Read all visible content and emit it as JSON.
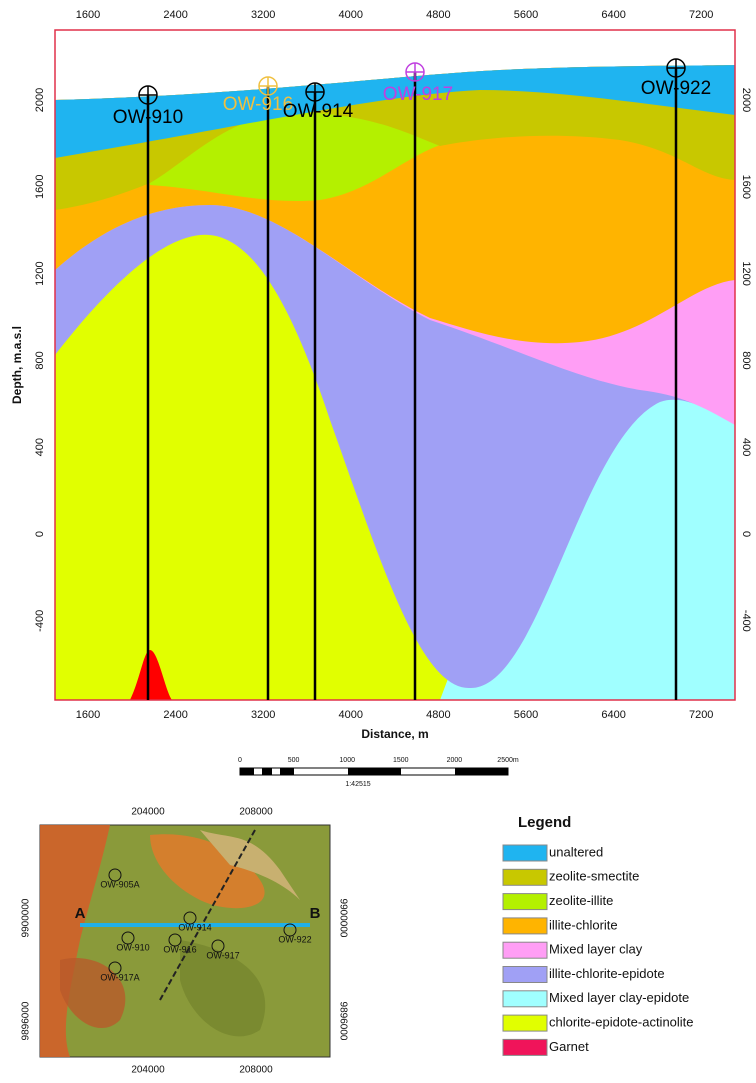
{
  "cross_section": {
    "top_x_ticks": [
      1600,
      2400,
      3200,
      4000,
      4800,
      5600,
      6400,
      7200
    ],
    "bottom_x_ticks": [
      1600,
      2400,
      3200,
      4000,
      4800,
      5600,
      6400,
      7200
    ],
    "left_y_ticks": [
      2000,
      1600,
      1200,
      800,
      400,
      0,
      -400
    ],
    "right_y_ticks": [
      2000,
      1600,
      1200,
      800,
      400,
      0,
      -400
    ],
    "x_label": "Distance, m",
    "y_label": "Depth, m.a.s.l",
    "wells": [
      {
        "label": "OW-910"
      },
      {
        "label": "OW-916"
      },
      {
        "label": "OW-914"
      },
      {
        "label": "OW-917"
      },
      {
        "label": "OW-922"
      }
    ]
  },
  "scale_bar": {
    "ticks": [
      "0",
      "500",
      "1000",
      "1500",
      "2000",
      "2500m"
    ],
    "ratio": "1:42515"
  },
  "map": {
    "top_ticks": [
      204000,
      208000
    ],
    "bottom_ticks": [
      204000,
      208000
    ],
    "left_ticks": [
      9900000,
      9896000
    ],
    "right_ticks": [
      9900000,
      9896000
    ],
    "points": [
      "A",
      "B"
    ],
    "wells": [
      "OW-905A",
      "OW-910",
      "OW-914",
      "OW-916",
      "OW-917",
      "OW-917A",
      "OW-922"
    ]
  },
  "legend": {
    "title": "Legend",
    "items": [
      "unaltered",
      "zeolite-smectite",
      "zeolite-illite",
      "illite-chlorite",
      "Mixed layer clay",
      "illite-chlorite-epidote",
      "Mixed layer clay-epidote",
      "chlorite-epidote-actinolite",
      "Garnet"
    ]
  }
}
